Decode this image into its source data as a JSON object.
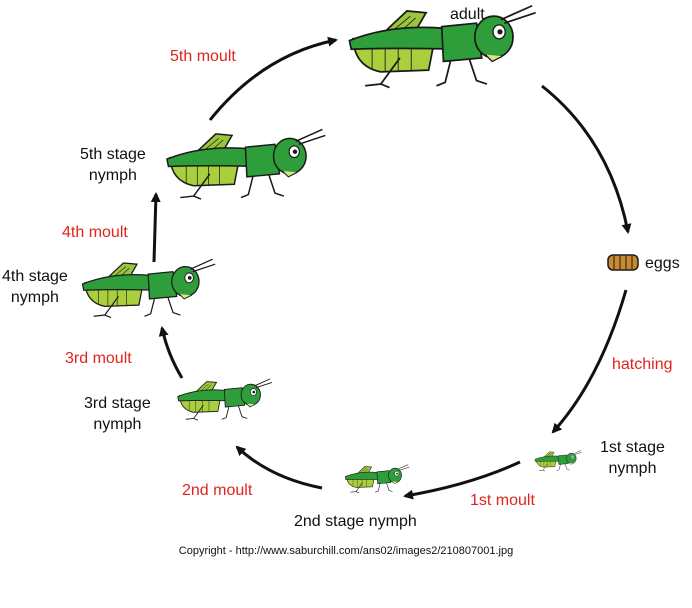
{
  "stages": {
    "adult": "adult",
    "eggs": "eggs",
    "nymph1_line1": "1st stage",
    "nymph1_line2": "nymph",
    "nymph2": "2nd stage nymph",
    "nymph3_line1": "3rd stage",
    "nymph3_line2": "nymph",
    "nymph4_line1": "4th stage",
    "nymph4_line2": "nymph",
    "nymph5_line1": "5th stage",
    "nymph5_line2": "nymph"
  },
  "transitions": {
    "hatching": "hatching",
    "moult1": "1st moult",
    "moult2": "2nd moult",
    "moult3": "3rd moult",
    "moult4": "4th moult",
    "moult5": "5th moult"
  },
  "copyright": "Copyright - http://www.saburchill.com/ans02/images2/210807001.jpg",
  "colors": {
    "label_text": "#111111",
    "moult_text": "#e0241b",
    "body_green": "#2e9e3a",
    "light_green": "#a9cf3c",
    "outline": "#1a1a1a",
    "egg": "#c9892e"
  }
}
